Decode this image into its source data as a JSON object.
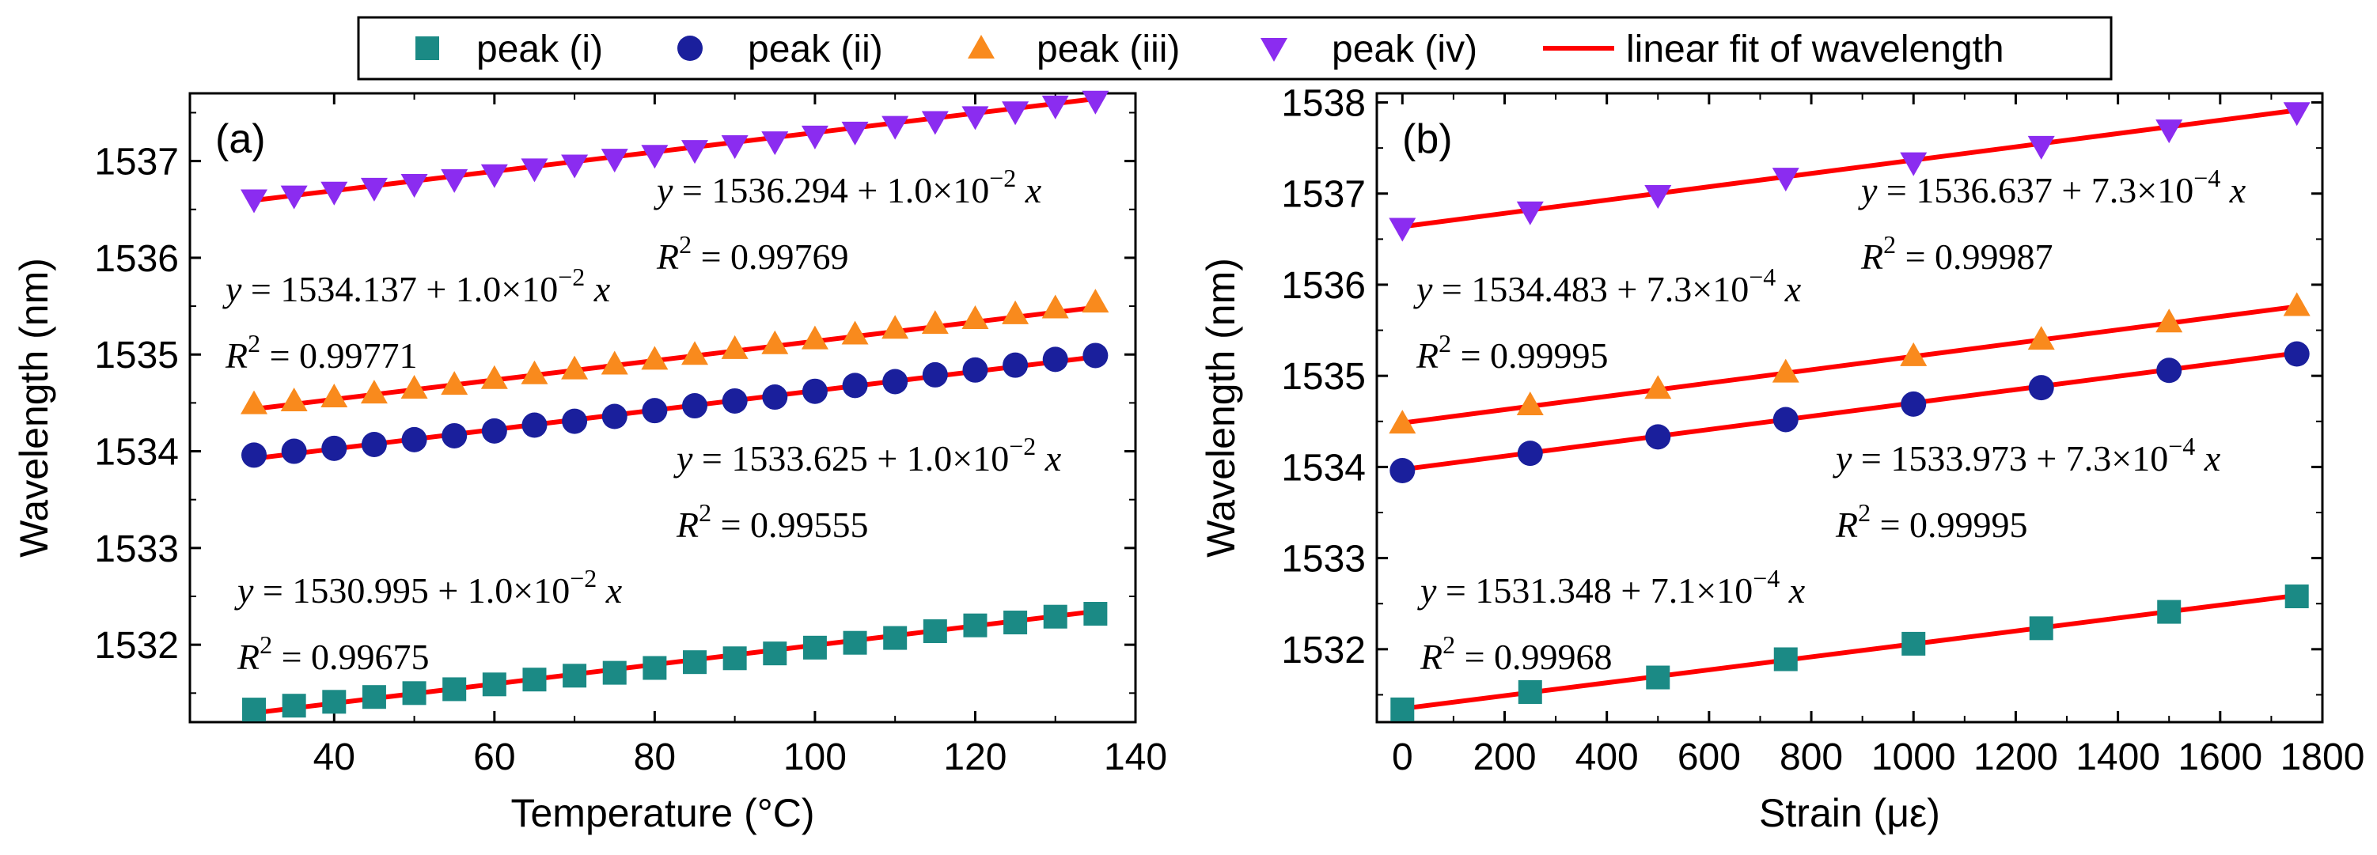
{
  "legend": {
    "items": [
      {
        "label": "peak (i)",
        "marker": "square",
        "color": "#1b8a85"
      },
      {
        "label": "peak (ii)",
        "marker": "circle",
        "color": "#1a1f9c"
      },
      {
        "label": "peak (iii)",
        "marker": "triangle-up",
        "color": "#f98a1d"
      },
      {
        "label": "peak (iv)",
        "marker": "triangle-down",
        "color": "#8b2cf0"
      },
      {
        "label": "linear fit of wavelength",
        "marker": "line",
        "color": "#ff0000"
      }
    ]
  },
  "chart_data": [
    {
      "type": "scatter",
      "panel_label": "(a)",
      "xlabel": "Temperature (°C)",
      "ylabel": "Wavelength (nm)",
      "xlim": [
        22,
        140
      ],
      "ylim": [
        1531.2,
        1537.7
      ],
      "xticks": [
        40,
        60,
        80,
        100,
        120,
        140
      ],
      "yticks": [
        1532,
        1533,
        1534,
        1535,
        1536,
        1537
      ],
      "x": [
        30,
        35,
        40,
        45,
        50,
        55,
        60,
        65,
        70,
        75,
        80,
        85,
        90,
        95,
        100,
        105,
        110,
        115,
        120,
        125,
        130,
        135
      ],
      "series": [
        {
          "name": "peak (i)",
          "values": [
            1531.33,
            1531.37,
            1531.41,
            1531.46,
            1531.5,
            1531.54,
            1531.59,
            1531.64,
            1531.68,
            1531.71,
            1531.76,
            1531.82,
            1531.86,
            1531.91,
            1531.97,
            1532.02,
            1532.07,
            1532.14,
            1532.2,
            1532.23,
            1532.29,
            1532.32
          ]
        },
        {
          "name": "peak (ii)",
          "values": [
            1533.96,
            1534.0,
            1534.03,
            1534.07,
            1534.12,
            1534.16,
            1534.21,
            1534.27,
            1534.31,
            1534.36,
            1534.42,
            1534.47,
            1534.52,
            1534.56,
            1534.62,
            1534.68,
            1534.72,
            1534.79,
            1534.84,
            1534.89,
            1534.95,
            1534.99
          ]
        },
        {
          "name": "peak (iii)",
          "values": [
            1534.49,
            1534.52,
            1534.56,
            1534.6,
            1534.65,
            1534.69,
            1534.75,
            1534.8,
            1534.85,
            1534.9,
            1534.95,
            1535.0,
            1535.06,
            1535.11,
            1535.16,
            1535.21,
            1535.27,
            1535.32,
            1535.37,
            1535.42,
            1535.48,
            1535.54
          ]
        },
        {
          "name": "peak (iv)",
          "values": [
            1536.6,
            1536.64,
            1536.68,
            1536.72,
            1536.76,
            1536.81,
            1536.86,
            1536.92,
            1536.96,
            1537.02,
            1537.06,
            1537.11,
            1537.16,
            1537.2,
            1537.26,
            1537.3,
            1537.36,
            1537.41,
            1537.46,
            1537.51,
            1537.57,
            1537.62
          ]
        }
      ],
      "fits": [
        {
          "name": "peak (i)",
          "intercept": 1530.995,
          "slope": 0.01,
          "equation": "y = 1530.995 + 1.0×10⁻² x",
          "r2": "R² = 0.99675"
        },
        {
          "name": "peak (ii)",
          "intercept": 1533.625,
          "slope": 0.01,
          "equation": "y = 1533.625 + 1.0×10⁻² x",
          "r2": "R² = 0.99555"
        },
        {
          "name": "peak (iii)",
          "intercept": 1534.137,
          "slope": 0.01,
          "equation": "y = 1534.137 + 1.0×10⁻² x",
          "r2": "R² = 0.99771"
        },
        {
          "name": "peak (iv)",
          "intercept": 1536.294,
          "slope": 0.01,
          "equation": "y = 1536.294 + 1.0×10⁻² x",
          "r2": "R² = 0.99769"
        }
      ],
      "annotations": [
        {
          "intercept": "1530.995",
          "coef": "1.0",
          "exp": "−2",
          "r2": "0.99675"
        },
        {
          "intercept": "1533.625",
          "coef": "1.0",
          "exp": "−2",
          "r2": "0.99555"
        },
        {
          "intercept": "1534.137",
          "coef": "1.0",
          "exp": "−2",
          "r2": "0.99771"
        },
        {
          "intercept": "1536.294",
          "coef": "1.0",
          "exp": "−2",
          "r2": "0.99769"
        }
      ]
    },
    {
      "type": "scatter",
      "panel_label": "(b)",
      "xlabel": "Strain (με)",
      "ylabel": "Wavelength (nm)",
      "xlim": [
        -50,
        1800
      ],
      "ylim": [
        1531.2,
        1538.1
      ],
      "xticks": [
        0,
        200,
        400,
        600,
        800,
        1000,
        1200,
        1400,
        1600,
        1800
      ],
      "yticks": [
        1532,
        1533,
        1534,
        1535,
        1536,
        1537,
        1538
      ],
      "x": [
        0,
        250,
        500,
        750,
        1000,
        1250,
        1500,
        1750
      ],
      "series": [
        {
          "name": "peak (i)",
          "values": [
            1531.34,
            1531.53,
            1531.69,
            1531.89,
            1532.06,
            1532.23,
            1532.41,
            1532.58
          ]
        },
        {
          "name": "peak (ii)",
          "values": [
            1533.96,
            1534.15,
            1534.33,
            1534.52,
            1534.69,
            1534.87,
            1535.06,
            1535.24
          ]
        },
        {
          "name": "peak (iii)",
          "values": [
            1534.48,
            1534.68,
            1534.86,
            1535.04,
            1535.22,
            1535.4,
            1535.59,
            1535.77
          ]
        },
        {
          "name": "peak (iv)",
          "values": [
            1536.62,
            1536.8,
            1536.98,
            1537.17,
            1537.34,
            1537.52,
            1537.7,
            1537.89
          ]
        }
      ],
      "fits": [
        {
          "name": "peak (i)",
          "intercept": 1531.348,
          "slope": 0.00071,
          "equation": "y = 1531.348 + 7.1×10⁻⁴ x",
          "r2": "R² = 0.99968"
        },
        {
          "name": "peak (ii)",
          "intercept": 1533.973,
          "slope": 0.00073,
          "equation": "y = 1533.973 + 7.3×10⁻⁴ x",
          "r2": "R² = 0.99995"
        },
        {
          "name": "peak (iii)",
          "intercept": 1534.483,
          "slope": 0.00073,
          "equation": "y = 1534.483 + 7.3×10⁻⁴ x",
          "r2": "R² = 0.99995"
        },
        {
          "name": "peak (iv)",
          "intercept": 1536.637,
          "slope": 0.00073,
          "equation": "y = 1536.637 + 7.3×10⁻⁴ x",
          "r2": "R² = 0.99987"
        }
      ],
      "annotations": [
        {
          "intercept": "1531.348",
          "coef": "7.1",
          "exp": "−4",
          "r2": "0.99968"
        },
        {
          "intercept": "1533.973",
          "coef": "7.3",
          "exp": "−4",
          "r2": "0.99995"
        },
        {
          "intercept": "1534.483",
          "coef": "7.3",
          "exp": "−4",
          "r2": "0.99995"
        },
        {
          "intercept": "1536.637",
          "coef": "7.3",
          "exp": "−4",
          "r2": "0.99987"
        }
      ]
    }
  ]
}
